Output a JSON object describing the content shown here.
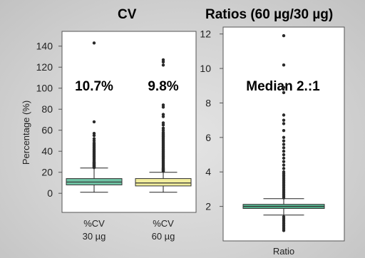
{
  "chart_data": [
    {
      "type": "box",
      "title": "CV",
      "ylabel": "Percentage (%)",
      "xlabel": "",
      "ylim": [
        -8,
        150
      ],
      "yticks": [
        0,
        20,
        40,
        60,
        80,
        100,
        120,
        140
      ],
      "fill_colors": [
        "#6fc3a4",
        "#f1ed9c"
      ],
      "series": [
        {
          "name": "%CV 30 µg",
          "label_lines": [
            "%CV",
            "30 µg"
          ],
          "median": 10.7,
          "median_label": "10.7%",
          "q1": 8,
          "q3": 14,
          "whisker_low": 1,
          "whisker_high": 24,
          "outliers": [
            24.5,
            25,
            25.5,
            26,
            26.5,
            27,
            27.5,
            28,
            28.5,
            29,
            29.5,
            30,
            31,
            32,
            33,
            34,
            35,
            36,
            37,
            38,
            39,
            40,
            41,
            42,
            43,
            44,
            45,
            46,
            47,
            48,
            50,
            52,
            55,
            57,
            68,
            143
          ]
        },
        {
          "name": "%CV 60 µg",
          "label_lines": [
            "%CV",
            "60 µg"
          ],
          "median": 9.8,
          "median_label": "9.8%",
          "q1": 7,
          "q3": 14,
          "whisker_low": 1,
          "whisker_high": 20,
          "outliers": [
            21,
            21.5,
            22,
            22.5,
            23,
            23.5,
            24,
            25,
            26,
            27,
            28,
            29,
            30,
            31,
            32,
            33,
            34,
            35,
            36,
            37,
            38,
            39,
            40,
            41,
            42,
            43,
            44,
            45,
            46,
            47,
            48,
            49,
            50,
            51,
            52,
            53,
            54,
            55,
            56,
            57,
            58,
            60,
            62,
            65,
            67,
            73,
            75,
            82,
            84,
            122,
            125,
            127
          ]
        }
      ]
    },
    {
      "type": "box",
      "title": "Ratios (60 µg/30 µg)",
      "ylabel": "",
      "xlabel": "Ratio",
      "ylim": [
        0,
        12.4
      ],
      "yticks": [
        2,
        4,
        6,
        8,
        10,
        12
      ],
      "fill_colors": [
        "#56b48f"
      ],
      "series": [
        {
          "name": "Ratio",
          "median": 2.0,
          "median_label": "Median 2.:1",
          "q1": 1.88,
          "q3": 2.12,
          "whisker_low": 1.5,
          "whisker_high": 2.45,
          "outliers": [
            0.6,
            0.7,
            0.8,
            0.9,
            1.0,
            1.1,
            1.2,
            1.3,
            1.4,
            2.5,
            2.6,
            2.7,
            2.8,
            2.9,
            3.0,
            3.1,
            3.2,
            3.3,
            3.4,
            3.5,
            3.6,
            3.7,
            3.8,
            3.9,
            4.0,
            4.2,
            4.4,
            4.6,
            4.8,
            5.0,
            5.2,
            5.4,
            5.6,
            5.8,
            6.0,
            6.4,
            6.8,
            7.0,
            7.3,
            8.6,
            8.9,
            10.2,
            11.9
          ]
        }
      ]
    }
  ]
}
